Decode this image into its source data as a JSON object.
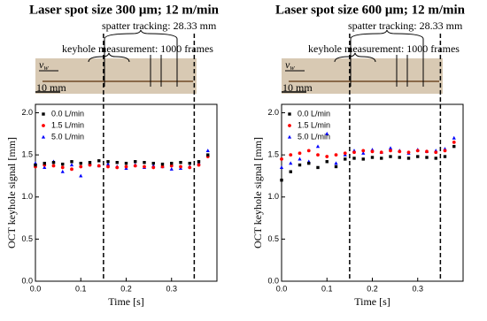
{
  "chart_data": [
    {
      "type": "scatter",
      "title": "Laser spot size 300 μm; 12 m/min",
      "annotations": {
        "spatter": "spatter tracking: 28.33 mm",
        "keyhole": "keyhole measurement: 1000 frames",
        "velocity_symbol": "v",
        "velocity_subscript": "w",
        "scale_bar": "10 mm"
      },
      "x_label": "Time [s]",
      "y_label": "OCT keyhole signal [mm]",
      "x": [
        0,
        0.02,
        0.04,
        0.06,
        0.08,
        0.1,
        0.12,
        0.14,
        0.16,
        0.18,
        0.2,
        0.22,
        0.24,
        0.26,
        0.28,
        0.3,
        0.32,
        0.34,
        0.36,
        0.38
      ],
      "series": [
        {
          "name": "0.0 L/min",
          "color": "#000000",
          "marker": "square",
          "values": [
            1.38,
            1.4,
            1.41,
            1.39,
            1.42,
            1.4,
            1.41,
            1.43,
            1.42,
            1.41,
            1.4,
            1.42,
            1.41,
            1.4,
            1.39,
            1.4,
            1.41,
            1.4,
            1.42,
            1.5
          ]
        },
        {
          "name": "1.5 L/min",
          "color": "#ff0000",
          "marker": "circle",
          "values": [
            1.36,
            1.38,
            1.37,
            1.35,
            1.33,
            1.36,
            1.38,
            1.37,
            1.36,
            1.35,
            1.36,
            1.37,
            1.36,
            1.35,
            1.36,
            1.37,
            1.36,
            1.35,
            1.38,
            1.48
          ]
        },
        {
          "name": "5.0 L/min",
          "color": "#0000ff",
          "marker": "triangle",
          "values": [
            1.4,
            1.35,
            1.42,
            1.3,
            1.38,
            1.25,
            1.4,
            1.37,
            1.39,
            1.36,
            1.34,
            1.38,
            1.35,
            1.37,
            1.36,
            1.33,
            1.34,
            1.36,
            1.4,
            1.55
          ]
        }
      ],
      "vlines": [
        0.15,
        0.35
      ],
      "xlim": [
        0,
        0.4
      ],
      "xticks": [
        {
          "value": 0,
          "label": "0.0"
        },
        0.1,
        0.2,
        0.3
      ],
      "ylim": [
        0,
        2.1
      ],
      "yticks": [
        {
          "value": 0,
          "label": "0.0"
        },
        0.5,
        {
          "value": 1,
          "label": "1.0"
        },
        1.5,
        {
          "value": 2,
          "label": "2.0"
        }
      ],
      "legend": "upper left"
    },
    {
      "type": "scatter",
      "title": "Laser spot size 600 μm; 12 m/min",
      "annotations": {
        "spatter": "spatter tracking: 28.33 mm",
        "keyhole": "keyhole measurement: 1000 frames",
        "velocity_symbol": "v",
        "velocity_subscript": "w",
        "scale_bar": "10 mm"
      },
      "x_label": "Time [s]",
      "y_label": "OCT keyhole signal [mm]",
      "x": [
        0,
        0.02,
        0.04,
        0.06,
        0.08,
        0.1,
        0.12,
        0.14,
        0.16,
        0.18,
        0.2,
        0.22,
        0.24,
        0.26,
        0.28,
        0.3,
        0.32,
        0.34,
        0.36,
        0.38
      ],
      "series": [
        {
          "name": "0.0 L/min",
          "color": "#000000",
          "marker": "square",
          "values": [
            1.2,
            1.3,
            1.38,
            1.4,
            1.35,
            1.42,
            1.36,
            1.45,
            1.46,
            1.45,
            1.47,
            1.46,
            1.48,
            1.47,
            1.46,
            1.48,
            1.47,
            1.46,
            1.48,
            1.6
          ]
        },
        {
          "name": "1.5 L/min",
          "color": "#ff0000",
          "marker": "circle",
          "values": [
            1.45,
            1.5,
            1.52,
            1.55,
            1.5,
            1.48,
            1.5,
            1.52,
            1.53,
            1.55,
            1.54,
            1.53,
            1.55,
            1.54,
            1.53,
            1.55,
            1.54,
            1.53,
            1.55,
            1.65
          ]
        },
        {
          "name": "5.0 L/min",
          "color": "#0000ff",
          "marker": "triangle",
          "values": [
            1.35,
            1.4,
            1.45,
            1.42,
            1.6,
            1.75,
            1.4,
            1.5,
            1.55,
            1.52,
            1.56,
            1.53,
            1.58,
            1.55,
            1.52,
            1.56,
            1.54,
            1.55,
            1.57,
            1.7
          ]
        }
      ],
      "vlines": [
        0.15,
        0.35
      ],
      "xlim": [
        0,
        0.4
      ],
      "xticks": [
        {
          "value": 0,
          "label": "0.0"
        },
        0.1,
        0.2,
        0.3
      ],
      "ylim": [
        0,
        2.1
      ],
      "yticks": [
        {
          "value": 0,
          "label": "0.0"
        },
        0.5,
        {
          "value": 1,
          "label": "1.0"
        },
        1.5,
        {
          "value": 2,
          "label": "2.0"
        }
      ],
      "legend": "upper left"
    }
  ]
}
